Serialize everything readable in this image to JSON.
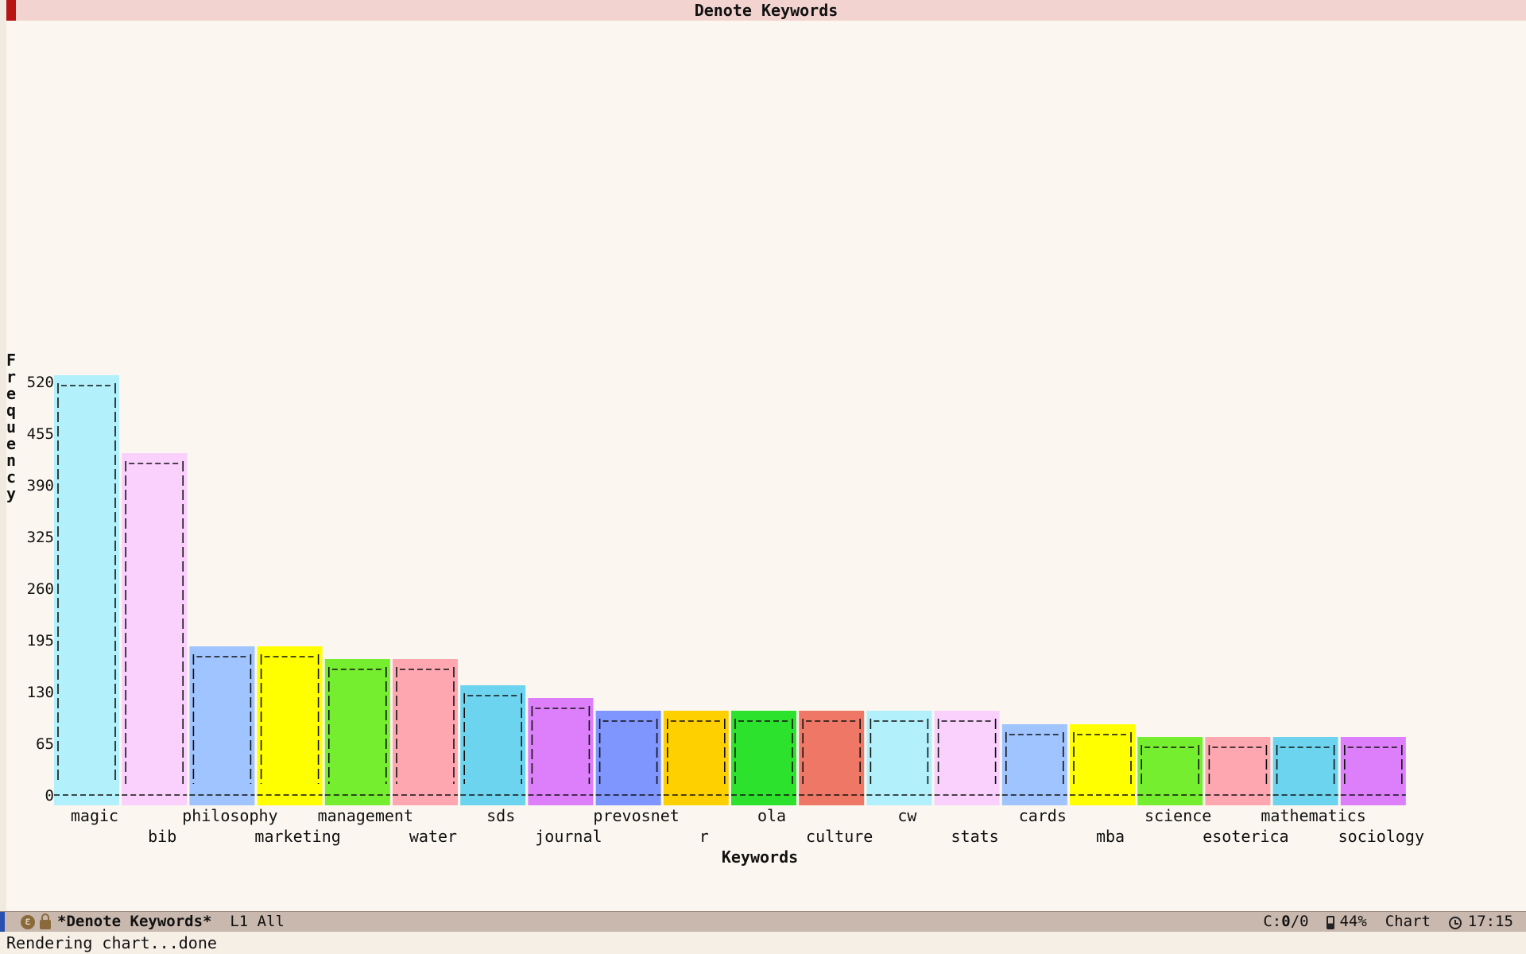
{
  "window": {
    "title": "Denote Keywords"
  },
  "chart_data": {
    "type": "bar",
    "title": "Denote Keywords",
    "xlabel": "Keywords",
    "ylabel": "Frequency",
    "ylim": [
      0,
      520
    ],
    "yticks": [
      0,
      65,
      130,
      195,
      260,
      325,
      390,
      455,
      520
    ],
    "categories": [
      "magic",
      "bib",
      "philosophy",
      "marketing",
      "management",
      "water",
      "sds",
      "journal",
      "prevosnet",
      "r",
      "ola",
      "culture",
      "cw",
      "stats",
      "cards",
      "mba",
      "science",
      "esoterica",
      "mathematics",
      "sociology"
    ],
    "values": [
      528,
      430,
      187,
      187,
      171,
      171,
      138,
      122,
      106,
      106,
      106,
      106,
      106,
      106,
      89,
      89,
      73,
      73,
      73,
      73
    ],
    "colors": [
      "#b2f0fb",
      "#fad0fd",
      "#a0c4ff",
      "#ffff00",
      "#74ee2f",
      "#ffa7b1",
      "#6dd4f0",
      "#dd7ffb",
      "#7f95ff",
      "#ffd000",
      "#2de22d",
      "#ef7766",
      "#b2f0fb",
      "#fad0fd",
      "#a0c4ff",
      "#ffff00",
      "#74ee2f",
      "#ffa7b1",
      "#6dd4f0",
      "#dd7ffb"
    ],
    "grid": false,
    "legend": "none"
  },
  "mode_line": {
    "buffer_name": "*Denote Keywords*",
    "position": "L1 All",
    "column_prefix": "C:",
    "column_value": "0",
    "column_suffix": "/0",
    "battery": "44%",
    "major_mode": "Chart",
    "time": "17:15"
  },
  "echo_area": {
    "message": "Rendering chart...done"
  }
}
